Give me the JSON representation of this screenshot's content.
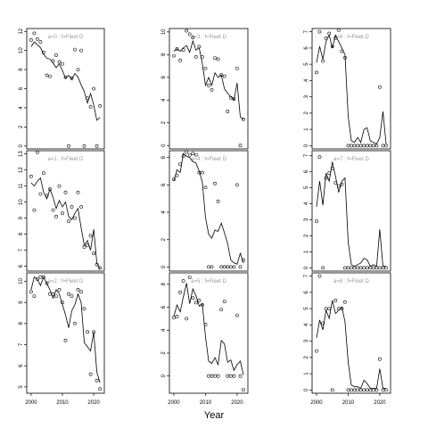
{
  "chart_data": {
    "type": "scatter",
    "xlabel": "Year",
    "panels": [
      {
        "label": "a=0  :  f=Fleet D",
        "ylim": [
          -0.3,
          12.3
        ],
        "yticks": [
          0,
          2,
          4,
          6,
          8,
          10,
          12
        ],
        "obs_x": [
          2000,
          2001,
          2002,
          2003,
          2004,
          2005,
          2006,
          2007,
          2008,
          2009,
          2010,
          2011,
          2012,
          2013,
          2014,
          2015,
          2016,
          2017,
          2018,
          2019,
          2020,
          2021,
          2022
        ],
        "obs_y": [
          11.1,
          11.8,
          11.2,
          10.9,
          9.8,
          7.4,
          7.3,
          8.9,
          9.5,
          8.8,
          8.6,
          7.2,
          0,
          7.1,
          10.1,
          8.0,
          10.0,
          0,
          5.0,
          4.1,
          6.0,
          0,
          4.2
        ],
        "fit_x": [
          2000,
          2001,
          2002,
          2003,
          2004,
          2005,
          2006,
          2007,
          2008,
          2009,
          2010,
          2011,
          2012,
          2013,
          2014,
          2015,
          2016,
          2017,
          2018,
          2019,
          2020,
          2021,
          2022
        ],
        "fit_y": [
          10.4,
          10.9,
          10.6,
          10.3,
          9.6,
          9.2,
          9.1,
          8.7,
          8.2,
          8.6,
          7.9,
          7.1,
          7.4,
          7.0,
          7.6,
          7.2,
          6.4,
          5.7,
          4.5,
          5.5,
          4.3,
          2.7,
          3.0
        ]
      },
      {
        "label": "a=1  :  f=Fleet D",
        "ylim": [
          5.7,
          13.2
        ],
        "yticks": [
          6,
          7,
          8,
          9,
          10,
          11,
          12,
          13
        ],
        "obs_x": [
          2000,
          2001,
          2002,
          2003,
          2004,
          2005,
          2006,
          2007,
          2008,
          2009,
          2010,
          2011,
          2012,
          2013,
          2014,
          2015,
          2016,
          2017,
          2018,
          2019,
          2020,
          2021,
          2022
        ],
        "obs_y": [
          11.6,
          9.5,
          13.1,
          10.5,
          11.8,
          10.4,
          10.8,
          9.5,
          9.1,
          11.0,
          9.3,
          10.6,
          8.8,
          9.7,
          9.0,
          10.6,
          9.7,
          7.2,
          7.3,
          7.9,
          6.8,
          6.1,
          5.9
        ],
        "fit_x": [
          2000,
          2001,
          2002,
          2003,
          2004,
          2005,
          2006,
          2007,
          2008,
          2009,
          2010,
          2011,
          2012,
          2013,
          2014,
          2015,
          2016,
          2017,
          2018,
          2019,
          2020,
          2021,
          2022
        ],
        "fit_y": [
          11.2,
          11.0,
          11.3,
          11.5,
          10.6,
          10.2,
          10.8,
          10.3,
          9.6,
          10.1,
          9.7,
          10.0,
          9.1,
          8.9,
          9.3,
          9.6,
          8.4,
          7.3,
          7.6,
          7.0,
          8.3,
          6.2,
          5.8
        ]
      },
      {
        "label": "a=2  :  f=Fleet D",
        "ylim": [
          4.7,
          10.4
        ],
        "yticks": [
          5,
          6,
          7,
          8,
          9,
          10
        ],
        "obs_x": [
          2000,
          2001,
          2002,
          2003,
          2004,
          2005,
          2006,
          2007,
          2008,
          2009,
          2010,
          2011,
          2012,
          2013,
          2014,
          2015,
          2016,
          2017,
          2018,
          2019,
          2020,
          2021,
          2022
        ],
        "obs_y": [
          9.5,
          9.3,
          10.1,
          10.2,
          10.2,
          9.9,
          9.4,
          9.4,
          9.3,
          9.6,
          9.0,
          7.2,
          9.4,
          9.3,
          8.0,
          9.6,
          9.5,
          8.7,
          7.6,
          5.6,
          7.6,
          5.3,
          4.9
        ],
        "fit_x": [
          2000,
          2001,
          2002,
          2003,
          2004,
          2005,
          2006,
          2007,
          2008,
          2009,
          2010,
          2011,
          2012,
          2013,
          2014,
          2015,
          2016,
          2017,
          2018,
          2019,
          2020,
          2021,
          2022
        ],
        "fit_y": [
          9.6,
          10.2,
          10.1,
          9.8,
          10.2,
          9.9,
          9.6,
          9.2,
          9.6,
          9.4,
          8.9,
          8.4,
          7.8,
          8.6,
          8.9,
          9.4,
          9.0,
          7.1,
          6.9,
          6.7,
          7.6,
          5.7,
          5.2
        ]
      },
      {
        "label": "a=3  :  f=Fleet D",
        "ylim": [
          -0.3,
          10.3
        ],
        "yticks": [
          0,
          2,
          4,
          6,
          8,
          10
        ],
        "obs_x": [
          2000,
          2001,
          2002,
          2003,
          2004,
          2005,
          2006,
          2007,
          2008,
          2009,
          2010,
          2011,
          2012,
          2013,
          2014,
          2015,
          2016,
          2017,
          2018,
          2019,
          2020,
          2021,
          2022
        ],
        "obs_y": [
          7.9,
          8.5,
          7.5,
          8.4,
          10.1,
          9.8,
          9.5,
          7.8,
          8.7,
          7.8,
          6.8,
          5.3,
          4.9,
          7.7,
          7.6,
          6.2,
          6.1,
          3.0,
          4.2,
          4.1,
          6.8,
          0,
          2.3
        ],
        "fit_x": [
          2000,
          2001,
          2002,
          2003,
          2004,
          2005,
          2006,
          2007,
          2008,
          2009,
          2010,
          2011,
          2012,
          2013,
          2014,
          2015,
          2016,
          2017,
          2018,
          2019,
          2020,
          2021,
          2022
        ],
        "fit_y": [
          8.3,
          8.5,
          8.3,
          8.6,
          8.8,
          8.2,
          9.2,
          8.4,
          8.6,
          7.2,
          5.3,
          6.0,
          5.3,
          6.4,
          6.0,
          6.2,
          5.0,
          4.6,
          4.3,
          4.0,
          5.5,
          2.5,
          2.3
        ]
      },
      {
        "label": "a=4  :  f=Fleet D",
        "ylim": [
          -0.3,
          8.5
        ],
        "yticks": [
          0,
          2,
          4,
          6,
          8
        ],
        "obs_x": [
          2000,
          2001,
          2002,
          2003,
          2004,
          2005,
          2006,
          2007,
          2008,
          2009,
          2010,
          2011,
          2012,
          2013,
          2014,
          2015,
          2016,
          2017,
          2018,
          2019,
          2020,
          2021,
          2022
        ],
        "obs_y": [
          6.4,
          6.7,
          7.5,
          8.1,
          8.4,
          8.2,
          8.3,
          8.2,
          6.9,
          6.9,
          5.8,
          0,
          0,
          6.1,
          4.8,
          0,
          0,
          0,
          0,
          0,
          6.0,
          0,
          0.5
        ],
        "fit_x": [
          2000,
          2001,
          2002,
          2003,
          2004,
          2005,
          2006,
          2007,
          2008,
          2009,
          2010,
          2011,
          2012,
          2013,
          2014,
          2015,
          2016,
          2017,
          2018,
          2019,
          2020,
          2021,
          2022
        ],
        "fit_y": [
          6.3,
          7.1,
          6.9,
          8.3,
          8.1,
          8.0,
          7.7,
          7.6,
          7.0,
          6.2,
          3.6,
          2.4,
          2.1,
          2.7,
          2.6,
          3.2,
          2.5,
          1.7,
          0.5,
          0.3,
          0.2,
          1.0,
          0.3
        ]
      },
      {
        "label": "a=5  :  f=Fleet D",
        "ylim": [
          -1.5,
          9.0
        ],
        "yticks": [
          0,
          2,
          4,
          6,
          8
        ],
        "obs_x": [
          2000,
          2001,
          2002,
          2003,
          2004,
          2005,
          2006,
          2007,
          2008,
          2009,
          2010,
          2011,
          2012,
          2013,
          2014,
          2015,
          2016,
          2017,
          2018,
          2019,
          2020,
          2021,
          2022
        ],
        "obs_y": [
          5.1,
          5.2,
          7.3,
          8.3,
          5.0,
          8.6,
          6.8,
          6.4,
          6.6,
          6.2,
          4.5,
          0,
          0,
          0,
          0,
          5.8,
          6.5,
          0,
          0,
          0,
          5.3,
          0,
          -1.2
        ],
        "fit_x": [
          2000,
          2001,
          2002,
          2003,
          2004,
          2005,
          2006,
          2007,
          2008,
          2009,
          2010,
          2011,
          2012,
          2013,
          2014,
          2015,
          2016,
          2017,
          2018,
          2019,
          2020,
          2021,
          2022
        ],
        "fit_y": [
          5.2,
          6.2,
          5.6,
          6.9,
          8.1,
          6.3,
          7.6,
          7.0,
          6.1,
          6.3,
          3.4,
          1.3,
          1.1,
          1.6,
          1.0,
          3.1,
          2.8,
          1.2,
          1.4,
          0.5,
          1.0,
          1.3,
          0.1
        ]
      },
      {
        "label": "a=6  :  f=Fleet D",
        "ylim": [
          -0.2,
          7.2
        ],
        "yticks": [
          0,
          1,
          2,
          3,
          4,
          5,
          6,
          7
        ],
        "obs_x": [
          2000,
          2001,
          2002,
          2003,
          2004,
          2005,
          2006,
          2007,
          2008,
          2009,
          2010,
          2011,
          2012,
          2013,
          2014,
          2015,
          2016,
          2017,
          2018,
          2019,
          2020,
          2021,
          2022
        ],
        "obs_y": [
          4.5,
          7.0,
          5.2,
          6.6,
          6.9,
          6.1,
          6.6,
          7.1,
          5.8,
          5.4,
          0,
          0,
          0,
          0,
          0,
          0,
          0,
          0,
          0,
          0,
          3.6,
          0,
          0
        ],
        "fit_x": [
          2000,
          2001,
          2002,
          2003,
          2004,
          2005,
          2006,
          2007,
          2008,
          2009,
          2010,
          2011,
          2012,
          2013,
          2014,
          2015,
          2016,
          2017,
          2018,
          2019,
          2020,
          2021,
          2022
        ],
        "fit_y": [
          5.1,
          6.1,
          5.3,
          6.4,
          6.8,
          6.0,
          6.8,
          6.4,
          6.0,
          5.6,
          1.8,
          0.3,
          0.2,
          0.5,
          0.2,
          1.0,
          1.1,
          0.3,
          0.2,
          0.1,
          0.5,
          2.1,
          0.1
        ]
      },
      {
        "label": "a=7  :  f=Fleet D",
        "ylim": [
          -0.2,
          7.3
        ],
        "yticks": [
          0,
          1,
          2,
          3,
          4,
          5,
          6,
          7
        ],
        "obs_x": [
          2000,
          2001,
          2002,
          2003,
          2004,
          2005,
          2006,
          2007,
          2008,
          2009,
          2010,
          2011,
          2012,
          2013,
          2014,
          2015,
          2016,
          2017,
          2018,
          2019,
          2020,
          2021,
          2022
        ],
        "obs_y": [
          2.9,
          6.9,
          0,
          5.6,
          5.9,
          6.2,
          5.3,
          5.1,
          5.2,
          0,
          0,
          0,
          0,
          0,
          0,
          0,
          0,
          0,
          0,
          0,
          0,
          0,
          0
        ],
        "fit_x": [
          2000,
          2001,
          2002,
          2003,
          2004,
          2005,
          2006,
          2007,
          2008,
          2009,
          2010,
          2011,
          2012,
          2013,
          2014,
          2015,
          2016,
          2017,
          2018,
          2019,
          2020,
          2021,
          2022
        ],
        "fit_y": [
          3.8,
          5.4,
          3.9,
          5.9,
          5.4,
          6.6,
          5.7,
          4.7,
          5.4,
          5.6,
          1.6,
          0.2,
          0.1,
          0.2,
          0.3,
          0.6,
          0.5,
          0.1,
          0.2,
          0.1,
          2.4,
          0.1,
          0.1
        ]
      },
      {
        "label": "a=8  :  f=Fleet D",
        "ylim": [
          -0.2,
          7.2
        ],
        "yticks": [
          0,
          1,
          2,
          3,
          4,
          5,
          6,
          7
        ],
        "obs_x": [
          2000,
          2001,
          2002,
          2003,
          2004,
          2005,
          2006,
          2007,
          2008,
          2009,
          2010,
          2011,
          2012,
          2013,
          2014,
          2015,
          2016,
          2017,
          2018,
          2019,
          2020,
          2021,
          2022
        ],
        "obs_y": [
          2.4,
          7.0,
          4.1,
          5.0,
          5.0,
          0,
          5.5,
          5.0,
          5.0,
          5.4,
          0,
          0,
          0,
          0,
          0,
          0,
          0,
          0,
          0,
          0,
          1.9,
          0,
          0
        ],
        "fit_x": [
          2000,
          2001,
          2002,
          2003,
          2004,
          2005,
          2006,
          2007,
          2008,
          2009,
          2010,
          2011,
          2012,
          2013,
          2014,
          2015,
          2016,
          2017,
          2018,
          2019,
          2020,
          2021,
          2022
        ],
        "fit_y": [
          3.2,
          4.3,
          3.7,
          4.9,
          4.4,
          5.5,
          4.7,
          4.9,
          5.1,
          4.2,
          1.7,
          0.3,
          0.2,
          0.2,
          0.1,
          0.6,
          0.4,
          0.1,
          0.1,
          0.1,
          1.3,
          0.1,
          0.1
        ]
      }
    ],
    "x_ticks": [
      2000,
      2010,
      2020
    ]
  }
}
